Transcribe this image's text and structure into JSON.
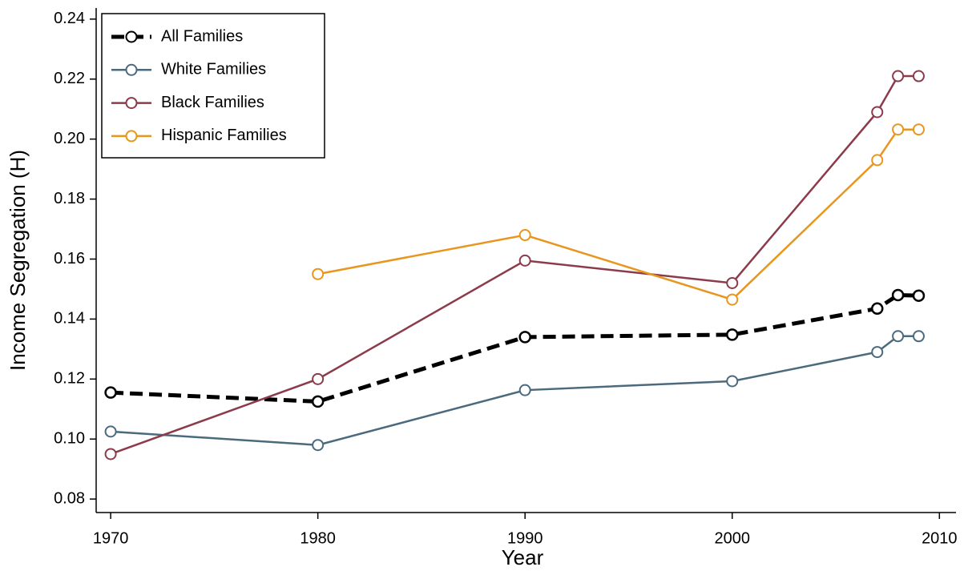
{
  "chart_data": {
    "type": "line",
    "xlabel": "Year",
    "ylabel": "Income Segregation (H)",
    "x": [
      1970,
      1980,
      1990,
      2000,
      2007,
      2008,
      2009
    ],
    "series": [
      {
        "name": "All Families",
        "color": "#000000",
        "dashed": true,
        "values": [
          0.1155,
          0.1125,
          0.134,
          0.1348,
          0.1435,
          0.148,
          0.1478
        ]
      },
      {
        "name": "White Families",
        "color": "#4b6a7e",
        "values": [
          0.1025,
          0.098,
          0.1163,
          0.1193,
          0.129,
          0.1343,
          0.1343
        ]
      },
      {
        "name": "Black Families",
        "color": "#8c3b4b",
        "values": [
          0.095,
          0.12,
          0.1595,
          0.152,
          0.209,
          0.221,
          0.221
        ]
      },
      {
        "name": "Hispanic Families",
        "color": "#e8961e",
        "values": [
          null,
          0.155,
          0.168,
          0.1465,
          0.193,
          0.2032,
          0.2032
        ]
      }
    ],
    "xlim": [
      1969.3,
      2010.8
    ],
    "xticks": [
      1970,
      1980,
      1990,
      2000,
      2010
    ],
    "ylim": [
      0.0755,
      0.2437
    ],
    "yticks": [
      0.08,
      {
        "value": 0.1,
        "label": "0.10"
      },
      0.12,
      0.14,
      0.16,
      0.18,
      {
        "value": 0.2,
        "label": "0.20"
      },
      0.22,
      0.24
    ],
    "legend": "upper-left"
  }
}
